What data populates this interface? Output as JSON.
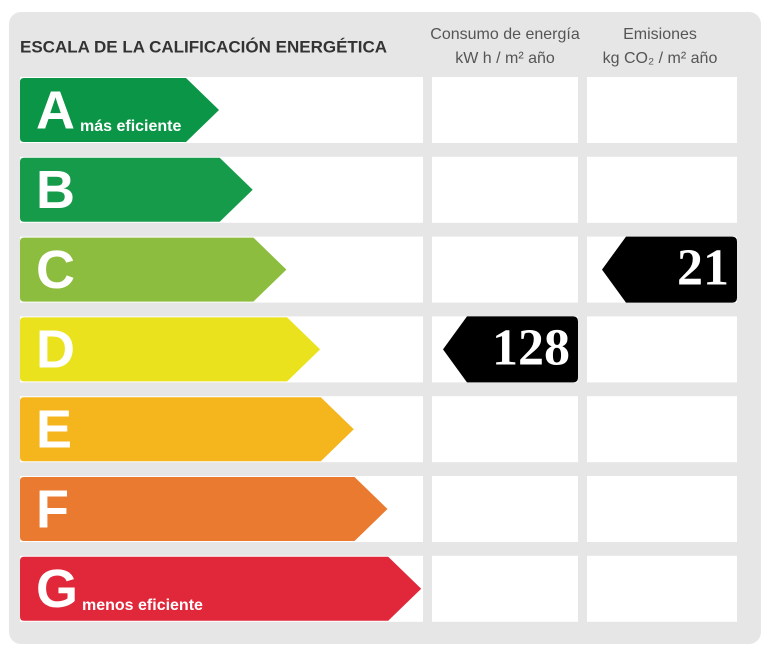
{
  "header": {
    "title": "ESCALA DE LA CALIFICACIÓN ENERGÉTICA",
    "consumption": {
      "title": "Consumo de energía",
      "unit": "kW h  / m² año"
    },
    "emissions": {
      "title": "Emisiones",
      "unit": "kg CO₂  / m² año"
    }
  },
  "rows": [
    {
      "letter": "A",
      "label": "más eficiente",
      "color": "#0b9546"
    },
    {
      "letter": "B",
      "color": "#169b4b"
    },
    {
      "letter": "C",
      "color": "#8dbd3e",
      "emissions": 21
    },
    {
      "letter": "D",
      "color": "#e9e21c",
      "consumption": 128
    },
    {
      "letter": "E",
      "color": "#f5b61d"
    },
    {
      "letter": "F",
      "color": "#ea7a30"
    },
    {
      "letter": "G",
      "label": "menos eficiente",
      "color": "#e1283a"
    }
  ]
}
